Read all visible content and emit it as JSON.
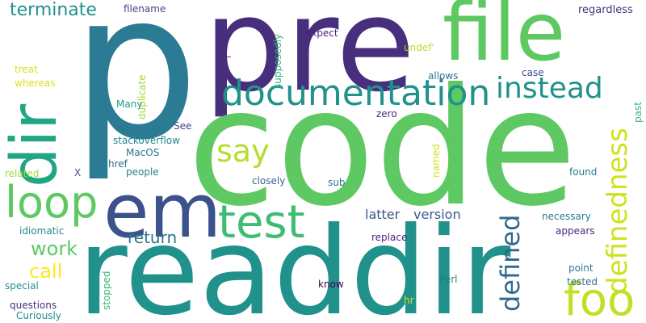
{
  "words": [
    {
      "text": "p",
      "color": "#2c7b94"
    },
    {
      "text": "pre",
      "color": "#472f7d"
    },
    {
      "text": "code",
      "color": "#5ec962"
    },
    {
      "text": "readdir",
      "color": "#21918c"
    },
    {
      "text": "file",
      "color": "#5ec962"
    },
    {
      "text": "dir",
      "color": "#21a685"
    },
    {
      "text": "em",
      "color": "#3b528b"
    },
    {
      "text": "documentation",
      "color": "#21918c"
    },
    {
      "text": "loop",
      "color": "#5ec962"
    },
    {
      "text": "test",
      "color": "#3fbc73"
    },
    {
      "text": "say",
      "color": "#b5de2b"
    },
    {
      "text": "instead",
      "color": "#21918c"
    },
    {
      "text": "definedness",
      "color": "#d0e11c"
    },
    {
      "text": "defined",
      "color": "#31688e"
    },
    {
      "text": "foo",
      "color": "#c2df23"
    },
    {
      "text": "terminate",
      "color": "#21918c"
    },
    {
      "text": "work",
      "color": "#5ec962"
    },
    {
      "text": "call",
      "color": "#fde725"
    },
    {
      "text": "return",
      "color": "#2a788e"
    },
    {
      "text": "latter",
      "color": "#39568c"
    },
    {
      "text": "version",
      "color": "#39568c"
    },
    {
      "text": "filename",
      "color": "#414487"
    },
    {
      "text": "regardless",
      "color": "#46337e"
    },
    {
      "text": "expect",
      "color": "#482475"
    },
    {
      "text": "undef'",
      "color": "#b5de2b"
    },
    {
      "text": "supposedly",
      "color": "#35b779"
    },
    {
      "text": "duplicate",
      "color": "#a0da39"
    },
    {
      "text": "treat",
      "color": "#d8e219"
    },
    {
      "text": "whereas",
      "color": "#d8e219"
    },
    {
      "text": "Many",
      "color": "#1f9e89"
    },
    {
      "text": "See",
      "color": "#404688"
    },
    {
      "text": "stackoverflow",
      "color": "#23888e"
    },
    {
      "text": "MacOS",
      "color": "#2c728e"
    },
    {
      "text": "href",
      "color": "#31688e"
    },
    {
      "text": "people",
      "color": "#277f8e"
    },
    {
      "text": "named",
      "color": "#d0e11c"
    },
    {
      "text": "allows",
      "color": "#2c728e"
    },
    {
      "text": "case",
      "color": "#3e4989"
    },
    {
      "text": "zero",
      "color": "#472d7b"
    },
    {
      "text": "past",
      "color": "#35b779"
    },
    {
      "text": "found",
      "color": "#287c8e"
    },
    {
      "text": "closely",
      "color": "#31688e"
    },
    {
      "text": "sub",
      "color": "#2a788e"
    },
    {
      "text": "necessary",
      "color": "#2a788e"
    },
    {
      "text": "appears",
      "color": "#472a7a"
    },
    {
      "text": "replace",
      "color": "#482576"
    },
    {
      "text": "point",
      "color": "#2a788e"
    },
    {
      "text": "tested",
      "color": "#2c728e"
    },
    {
      "text": "Perl",
      "color": "#287c8e"
    },
    {
      "text": "know",
      "color": "#440154"
    },
    {
      "text": "hr",
      "color": "#d0e11c"
    },
    {
      "text": "related",
      "color": "#a0da39"
    },
    {
      "text": "X",
      "color": "#3b528b"
    },
    {
      "text": "idiomatic",
      "color": "#24878e"
    },
    {
      "text": "special",
      "color": "#21918c"
    },
    {
      "text": "questions",
      "color": "#472d7b"
    },
    {
      "text": "Curiously",
      "color": "#23888e"
    },
    {
      "text": "stopped",
      "color": "#35b779"
    },
    {
      "text": "_",
      "color": "#482173"
    }
  ]
}
